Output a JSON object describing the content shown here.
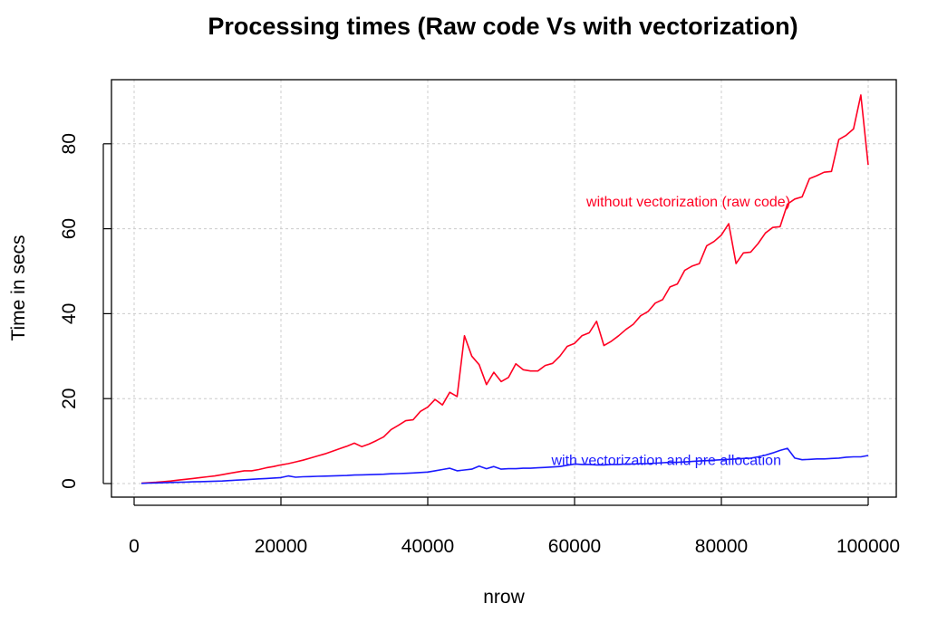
{
  "chart_data": {
    "type": "line",
    "title": "Processing times (Raw code Vs with vectorization)",
    "xlabel": "nrow",
    "ylabel": "Time in secs",
    "xlim": [
      0,
      100000
    ],
    "ylim": [
      0,
      92
    ],
    "xticks": [
      "0",
      "20000",
      "40000",
      "60000",
      "80000",
      "100000"
    ],
    "yticks": [
      "0",
      "20",
      "40",
      "60",
      "80"
    ],
    "grid": true,
    "series": [
      {
        "color": "#ff0022",
        "x": [
          1000,
          2000,
          3000,
          4000,
          5000,
          6000,
          7000,
          8000,
          9000,
          10000,
          11000,
          12000,
          13000,
          14000,
          15000,
          16000,
          17000,
          18000,
          19000,
          20000,
          21000,
          22000,
          23000,
          24000,
          25000,
          26000,
          27000,
          28000,
          29000,
          30000,
          31000,
          32000,
          33000,
          34000,
          35000,
          36000,
          37000,
          38000,
          39000,
          40000,
          41000,
          42000,
          43000,
          44000,
          45000,
          46000,
          47000,
          48000,
          49000,
          50000,
          51000,
          52000,
          53000,
          54000,
          55000,
          56000,
          57000,
          58000,
          59000,
          60000,
          61000,
          62000,
          63000,
          64000,
          65000,
          66000,
          67000,
          68000,
          69000,
          70000,
          71000,
          72000,
          73000,
          74000,
          75000,
          76000,
          77000,
          78000,
          79000,
          80000,
          81000,
          82000,
          83000,
          84000,
          85000,
          86000,
          87000,
          88000,
          89000,
          90000,
          91000,
          92000,
          93000,
          94000,
          95000,
          96000,
          97000,
          98000,
          99000,
          100000
        ],
        "y": [
          0.1,
          0.2,
          0.3,
          0.45,
          0.6,
          0.8,
          1.0,
          1.2,
          1.4,
          1.6,
          1.8,
          2.1,
          2.4,
          2.7,
          3.0,
          3.0,
          3.3,
          3.7,
          4.0,
          4.4,
          4.7,
          5.1,
          5.5,
          6.0,
          6.5,
          7.0,
          7.6,
          8.2,
          8.8,
          9.5,
          8.7,
          9.3,
          10.1,
          11.0,
          12.7,
          13.7,
          14.8,
          15.0,
          17.0,
          18.0,
          19.8,
          18.5,
          21.5,
          20.5,
          34.8,
          30.0,
          28.0,
          23.3,
          26.2,
          24.0,
          25.0,
          28.2,
          26.8,
          26.5,
          26.5,
          27.8,
          28.3,
          30.0,
          32.3,
          33.0,
          34.8,
          35.5,
          38.2,
          32.5,
          33.5,
          34.8,
          36.3,
          37.5,
          39.5,
          40.5,
          42.5,
          43.3,
          46.3,
          47.0,
          50.2,
          51.2,
          51.8,
          56.0,
          57.0,
          58.5,
          61.2,
          51.8,
          54.3,
          54.5,
          56.5,
          59.0,
          60.3,
          60.5,
          65.8,
          67.0,
          67.5,
          71.8,
          72.5,
          73.3,
          73.5,
          81.0,
          82.0,
          83.5,
          91.5,
          75.0
        ]
      },
      {
        "color": "#1a1aff",
        "x": [
          1000,
          2000,
          3000,
          4000,
          5000,
          6000,
          7000,
          8000,
          9000,
          10000,
          11000,
          12000,
          13000,
          14000,
          15000,
          16000,
          17000,
          18000,
          19000,
          20000,
          21000,
          22000,
          23000,
          24000,
          25000,
          26000,
          27000,
          28000,
          29000,
          30000,
          31000,
          32000,
          33000,
          34000,
          35000,
          36000,
          37000,
          38000,
          39000,
          40000,
          41000,
          42000,
          43000,
          44000,
          45000,
          46000,
          47000,
          48000,
          49000,
          50000,
          51000,
          52000,
          53000,
          54000,
          55000,
          56000,
          57000,
          58000,
          59000,
          60000,
          61000,
          62000,
          63000,
          64000,
          65000,
          66000,
          67000,
          68000,
          69000,
          70000,
          71000,
          72000,
          73000,
          74000,
          75000,
          76000,
          77000,
          78000,
          79000,
          80000,
          81000,
          82000,
          83000,
          84000,
          85000,
          86000,
          87000,
          88000,
          89000,
          90000,
          91000,
          92000,
          93000,
          94000,
          95000,
          96000,
          97000,
          98000,
          99000,
          100000
        ],
        "y": [
          0.05,
          0.1,
          0.15,
          0.2,
          0.25,
          0.3,
          0.35,
          0.4,
          0.45,
          0.5,
          0.55,
          0.6,
          0.7,
          0.8,
          0.9,
          1.0,
          1.1,
          1.2,
          1.3,
          1.4,
          1.8,
          1.5,
          1.6,
          1.65,
          1.7,
          1.75,
          1.8,
          1.85,
          1.9,
          2.0,
          2.05,
          2.1,
          2.15,
          2.2,
          2.3,
          2.35,
          2.4,
          2.5,
          2.6,
          2.7,
          3.0,
          3.3,
          3.6,
          3.0,
          3.2,
          3.4,
          4.1,
          3.5,
          4.0,
          3.4,
          3.5,
          3.5,
          3.6,
          3.6,
          3.7,
          3.8,
          3.9,
          4.0,
          4.3,
          4.6,
          4.5,
          4.5,
          4.4,
          4.4,
          4.5,
          4.5,
          4.6,
          4.6,
          4.7,
          4.7,
          4.8,
          4.9,
          5.0,
          5.0,
          5.1,
          5.2,
          5.3,
          5.4,
          5.5,
          5.6,
          5.7,
          5.8,
          5.9,
          6.0,
          6.3,
          6.7,
          7.2,
          7.8,
          8.3,
          6.0,
          5.6,
          5.7,
          5.8,
          5.8,
          5.9,
          6.0,
          6.2,
          6.3,
          6.3,
          6.6
        ]
      }
    ],
    "annotations": [
      {
        "text": "without vectorization (raw code)",
        "x": 75500,
        "y": 66.5,
        "color": "#ff0022"
      },
      {
        "text": "with vectorization and pre allocation",
        "x": 72500,
        "y": 5.7,
        "color": "#1a1aff"
      }
    ]
  }
}
